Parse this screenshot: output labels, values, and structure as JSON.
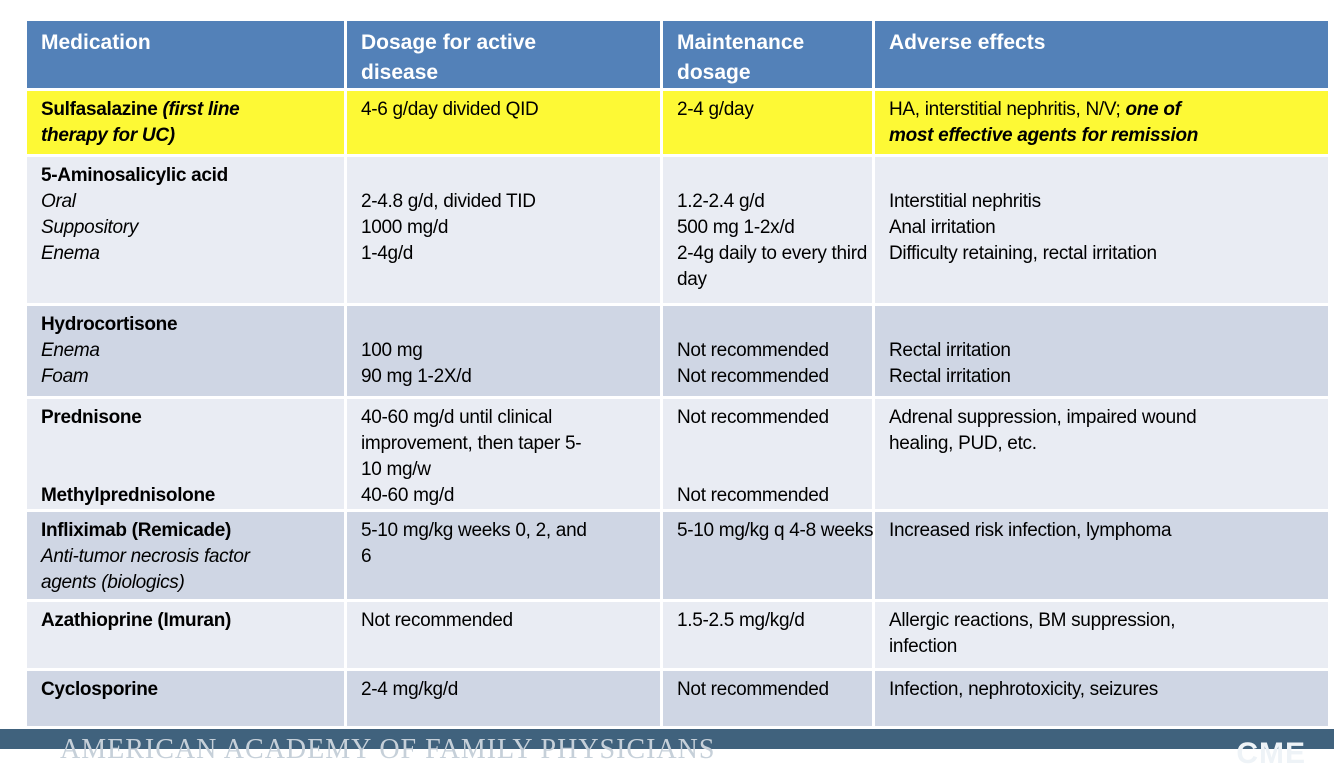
{
  "slide": {
    "colors": {
      "header_bg": "#5381b8",
      "row_light": "#e9ecf3",
      "row_dark": "#cfd6e4",
      "highlight": "#fdf935",
      "footer_bg": "#40627d",
      "header_text": "#ffffff",
      "body_text": "#000000"
    },
    "table": {
      "columns": [
        {
          "key": "medication",
          "label_lines": [
            "Medication"
          ]
        },
        {
          "key": "active-dosage",
          "label_lines": [
            "Dosage for active",
            "disease"
          ]
        },
        {
          "key": "maintenance-dosage",
          "label_lines": [
            "Maintenance",
            "dosage"
          ]
        },
        {
          "key": "adverse-effects",
          "label_lines": [
            "Adverse effects"
          ]
        }
      ],
      "rows": [
        {
          "name": "sulfasalazine",
          "highlight": true,
          "cells": [
            [
              [
                [
                  "b",
                  "Sulfasalazine "
                ],
                [
                  "bi",
                  "(first line"
                ]
              ],
              [
                [
                  "bi",
                  "therapy for UC)"
                ]
              ]
            ],
            [
              [
                [
                  "n",
                  "4-6 g/day divided QID"
                ]
              ]
            ],
            [
              [
                [
                  "n",
                  "2-4 g/day"
                ]
              ]
            ],
            [
              [
                [
                  "n",
                  "HA, interstitial nephritis, N/V; "
                ],
                [
                  "bi",
                  "one of"
                ]
              ],
              [
                [
                  "bi",
                  "most effective agents for remission"
                ]
              ]
            ]
          ]
        },
        {
          "name": "5-aminosalicylic-acid",
          "highlight": false,
          "cells": [
            [
              [
                [
                  "b",
                  "5-Aminosalicylic acid"
                ]
              ],
              [
                [
                  "i",
                  "Oral"
                ]
              ],
              [
                [
                  "i",
                  "Suppository"
                ]
              ],
              [
                [
                  "i",
                  "Enema"
                ]
              ]
            ],
            [
              [],
              [
                [
                  "n",
                  "2-4.8 g/d, divided TID"
                ]
              ],
              [
                [
                  "n",
                  "1000 mg/d"
                ]
              ],
              [
                [
                  "n",
                  "1-4g/d"
                ]
              ]
            ],
            [
              [],
              [
                [
                  "n",
                  "1.2-2.4 g/d"
                ]
              ],
              [
                [
                  "n",
                  "500 mg 1-2x/d"
                ]
              ],
              [
                [
                  "n",
                  "2-4g daily to every third"
                ]
              ],
              [
                [
                  "n",
                  "day"
                ]
              ]
            ],
            [
              [],
              [
                [
                  "n",
                  "Interstitial nephritis"
                ]
              ],
              [
                [
                  "n",
                  "Anal irritation"
                ]
              ],
              [
                [
                  "n",
                  "Difficulty retaining, rectal irritation"
                ]
              ]
            ]
          ]
        },
        {
          "name": "hydrocortisone",
          "highlight": false,
          "cells": [
            [
              [
                [
                  "b",
                  "Hydrocortisone"
                ]
              ],
              [
                [
                  "i",
                  "Enema"
                ]
              ],
              [
                [
                  "i",
                  "Foam"
                ]
              ]
            ],
            [
              [],
              [
                [
                  "n",
                  "100 mg"
                ]
              ],
              [
                [
                  "n",
                  "90 mg 1-2X/d"
                ]
              ]
            ],
            [
              [],
              [
                [
                  "n",
                  "Not recommended"
                ]
              ],
              [
                [
                  "n",
                  "Not recommended"
                ]
              ]
            ],
            [
              [],
              [
                [
                  "n",
                  "Rectal irritation"
                ]
              ],
              [
                [
                  "n",
                  "Rectal irritation"
                ]
              ]
            ]
          ]
        },
        {
          "name": "prednisone-methylprednisolone",
          "highlight": false,
          "cells": [
            [
              [
                [
                  "b",
                  "Prednisone"
                ]
              ],
              [],
              [],
              [
                [
                  "b",
                  "Methylprednisolone"
                ]
              ]
            ],
            [
              [
                [
                  "n",
                  "40-60 mg/d until clinical"
                ]
              ],
              [
                [
                  "n",
                  "improvement, then taper 5-"
                ]
              ],
              [
                [
                  "n",
                  "10 mg/w"
                ]
              ],
              [
                [
                  "n",
                  "40-60 mg/d"
                ]
              ]
            ],
            [
              [
                [
                  "n",
                  "Not recommended"
                ]
              ],
              [],
              [],
              [
                [
                  "n",
                  "Not recommended"
                ]
              ]
            ],
            [
              [
                [
                  "n",
                  "Adrenal suppression, impaired wound"
                ]
              ],
              [
                [
                  "n",
                  "healing, PUD, etc."
                ]
              ]
            ]
          ]
        },
        {
          "name": "infliximab",
          "highlight": false,
          "cells": [
            [
              [
                [
                  "b",
                  "Infliximab (Remicade)"
                ]
              ],
              [
                [
                  "i",
                  "Anti-tumor necrosis factor"
                ]
              ],
              [
                [
                  "i",
                  "agents (biologics)"
                ]
              ]
            ],
            [
              [
                [
                  "n",
                  "5-10 mg/kg weeks 0, 2, and"
                ]
              ],
              [
                [
                  "n",
                  "6"
                ]
              ]
            ],
            [
              [
                [
                  "n",
                  "5-10 mg/kg q 4-8 weeks"
                ]
              ]
            ],
            [
              [
                [
                  "n",
                  "Increased risk infection, lymphoma"
                ]
              ]
            ]
          ]
        },
        {
          "name": "azathioprine",
          "highlight": false,
          "cells": [
            [
              [
                [
                  "b",
                  "Azathioprine (Imuran)"
                ]
              ]
            ],
            [
              [
                [
                  "n",
                  "Not recommended"
                ]
              ]
            ],
            [
              [
                [
                  "n",
                  "1.5-2.5 mg/kg/d"
                ]
              ]
            ],
            [
              [
                [
                  "n",
                  "Allergic reactions, BM suppression,"
                ]
              ],
              [
                [
                  "n",
                  "infection"
                ]
              ]
            ]
          ]
        },
        {
          "name": "cyclosporine",
          "highlight": false,
          "cells": [
            [
              [
                [
                  "b",
                  "Cyclosporine"
                ]
              ]
            ],
            [
              [
                [
                  "n",
                  "2-4 mg/kg/d"
                ]
              ]
            ],
            [
              [
                [
                  "n",
                  "Not recommended"
                ]
              ]
            ],
            [
              [
                [
                  "n",
                  "Infection, nephrotoxicity, seizures"
                ]
              ]
            ]
          ]
        }
      ]
    },
    "footer": {
      "organization": "AMERICAN ACADEMY OF FAMILY PHYSICIANS",
      "badge": "CME"
    }
  }
}
